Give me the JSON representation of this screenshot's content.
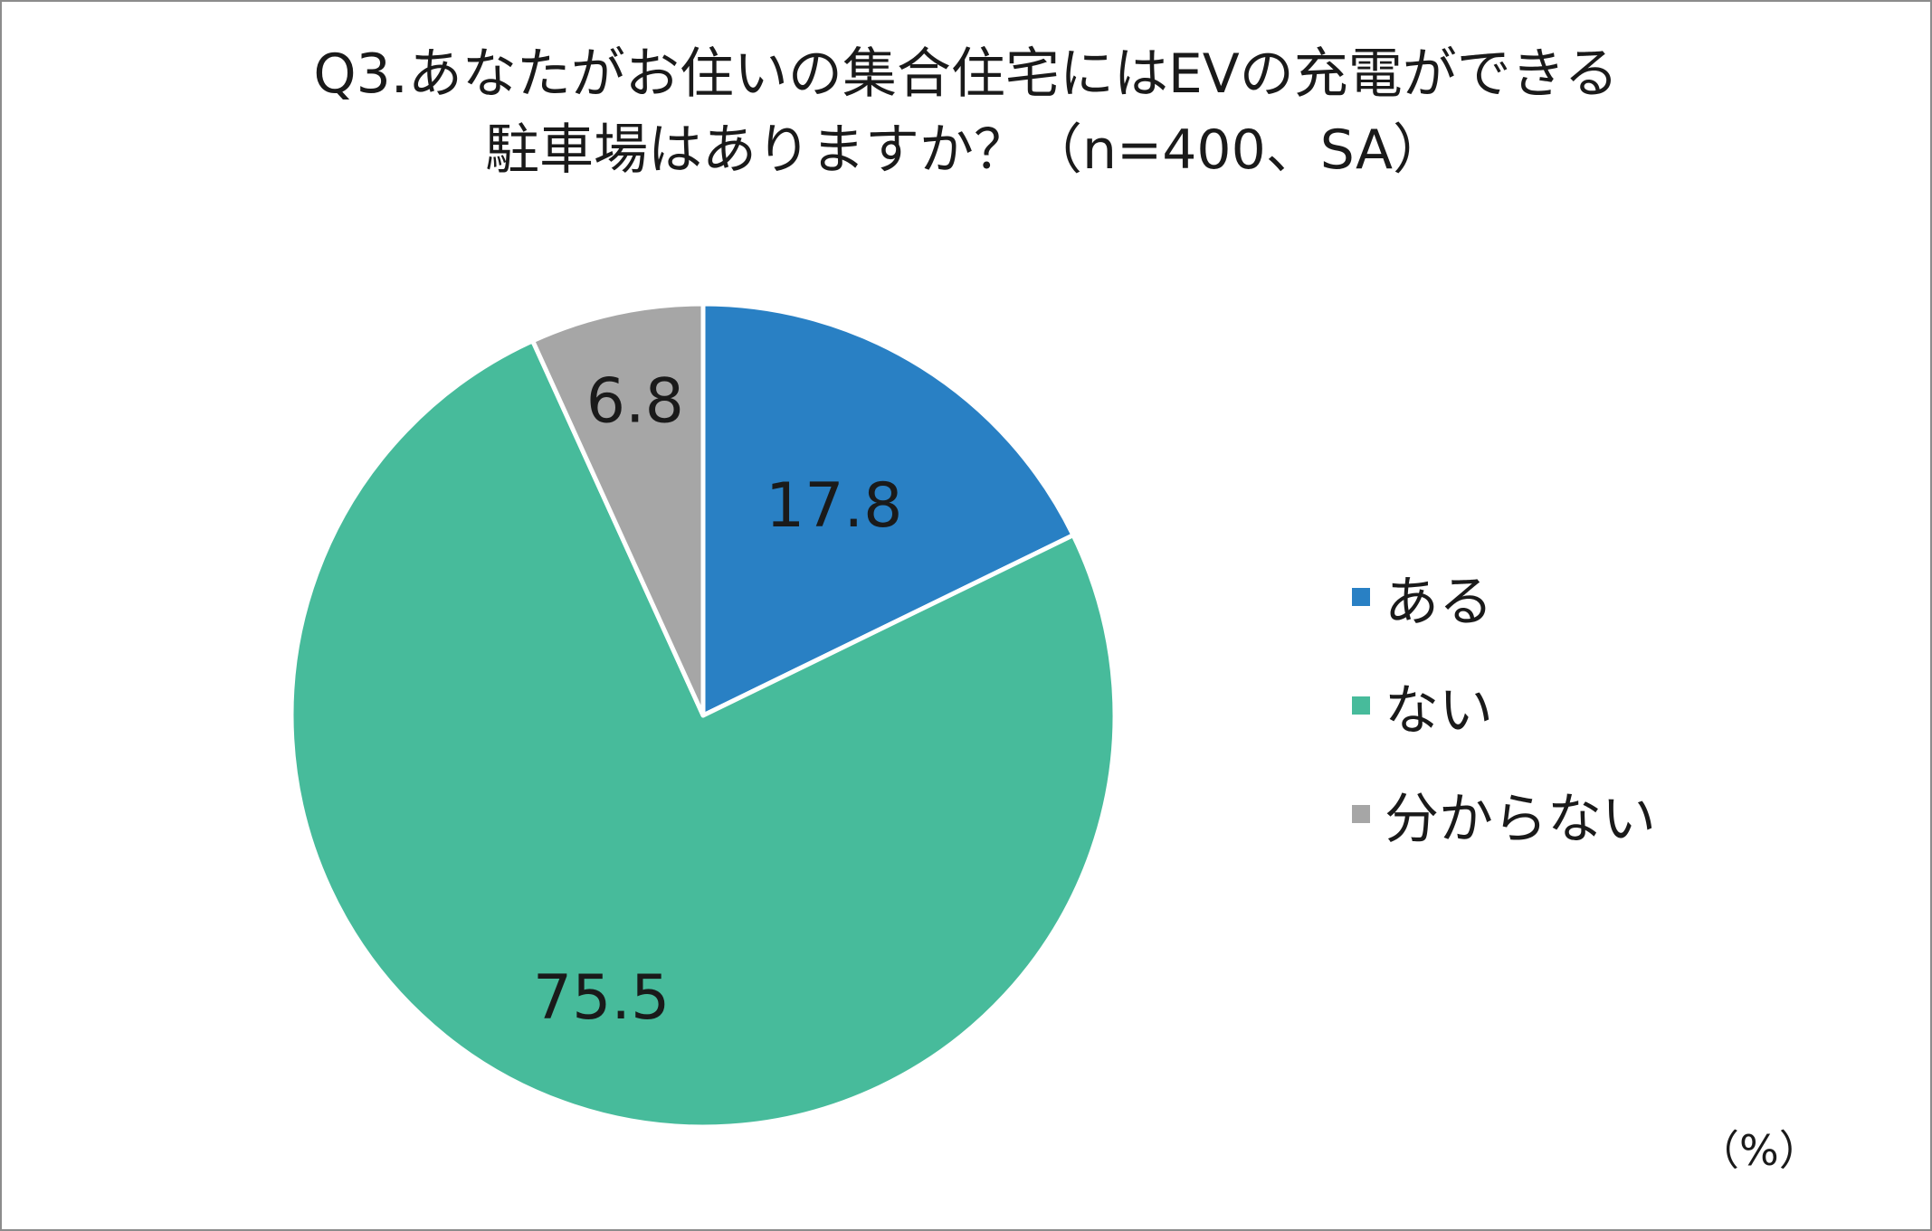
{
  "chart_data": {
    "type": "pie",
    "title_lines": [
      "Q3.あなたがお住いの集合住宅にはEVの充電ができる",
      "駐車場はありますか？（n=400、SA）"
    ],
    "unit_label": "（%）",
    "categories": [
      "ある",
      "ない",
      "分からない"
    ],
    "values": [
      17.8,
      75.5,
      6.8
    ],
    "data_labels": [
      "17.8",
      "75.5",
      "6.8"
    ],
    "colors": [
      "#2980c4",
      "#47bb9b",
      "#a6a6a6"
    ],
    "start_angle_deg": 0,
    "direction": "clockwise",
    "legend_position": "right"
  }
}
